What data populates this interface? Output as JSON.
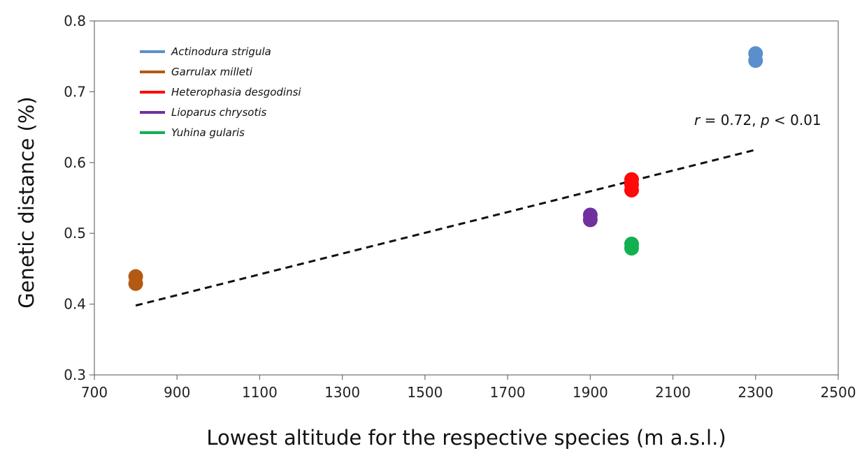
{
  "chart_data": {
    "type": "scatter",
    "xlabel": "Lowest altitude for the respective species (m a.s.l.)",
    "ylabel": "Genetic distance (%)",
    "xlim": [
      700,
      2500
    ],
    "ylim": [
      0.3,
      0.8
    ],
    "xticks": [
      "700",
      "900",
      "1100",
      "1300",
      "1500",
      "1700",
      "1900",
      "2100",
      "2300",
      "2500"
    ],
    "yticks": [
      "0.3",
      "0.4",
      "0.5",
      "0.6",
      "0.7",
      "0.8"
    ],
    "legend_position": "top-left",
    "series": [
      {
        "name": "Actinodura strigula",
        "color": "#5b8fcc",
        "points": [
          [
            2300,
            0.754
          ],
          [
            2300,
            0.744
          ]
        ]
      },
      {
        "name": "Garrulax milleti",
        "color": "#b35a12",
        "points": [
          [
            800,
            0.439
          ],
          [
            800,
            0.429
          ]
        ]
      },
      {
        "name": "Heterophasia desgodinsi",
        "color": "#ff0a0a",
        "points": [
          [
            2000,
            0.576
          ],
          [
            2000,
            0.569
          ],
          [
            2000,
            0.561
          ]
        ]
      },
      {
        "name": "Lioparus chrysotis",
        "color": "#7030a0",
        "points": [
          [
            1900,
            0.526
          ],
          [
            1900,
            0.519
          ]
        ]
      },
      {
        "name": "Yuhina gularis",
        "color": "#12b050",
        "points": [
          [
            2000,
            0.485
          ],
          [
            2000,
            0.479
          ]
        ]
      }
    ],
    "trendline": {
      "style": "dashed",
      "x": [
        800,
        2300
      ],
      "y": [
        0.398,
        0.618
      ]
    },
    "annotation": {
      "r_symbol": "r",
      "r_value": " = 0.72, ",
      "p_symbol": "p",
      "p_value": " < 0.01"
    }
  }
}
